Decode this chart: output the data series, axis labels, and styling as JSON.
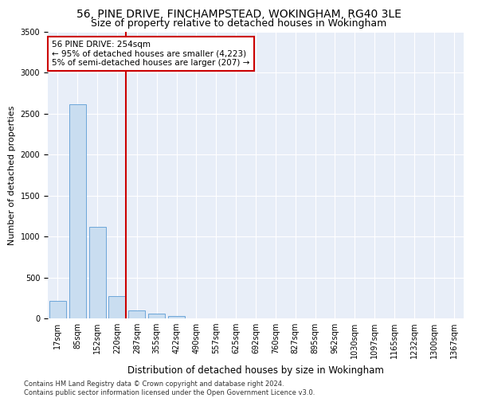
{
  "title1": "56, PINE DRIVE, FINCHAMPSTEAD, WOKINGHAM, RG40 3LE",
  "title2": "Size of property relative to detached houses in Wokingham",
  "xlabel": "Distribution of detached houses by size in Wokingham",
  "ylabel": "Number of detached properties",
  "categories": [
    "17sqm",
    "85sqm",
    "152sqm",
    "220sqm",
    "287sqm",
    "355sqm",
    "422sqm",
    "490sqm",
    "557sqm",
    "625sqm",
    "692sqm",
    "760sqm",
    "827sqm",
    "895sqm",
    "962sqm",
    "1030sqm",
    "1097sqm",
    "1165sqm",
    "1232sqm",
    "1300sqm",
    "1367sqm"
  ],
  "values": [
    210,
    2620,
    1120,
    270,
    100,
    55,
    28,
    0,
    0,
    0,
    0,
    0,
    0,
    0,
    0,
    0,
    0,
    0,
    0,
    0,
    0
  ],
  "bar_color": "#c9ddf0",
  "bar_edge_color": "#5b9bd5",
  "vline_color": "#cc0000",
  "vline_pos": 3.45,
  "annotation_text": "56 PINE DRIVE: 254sqm\n← 95% of detached houses are smaller (4,223)\n5% of semi-detached houses are larger (207) →",
  "annotation_box_facecolor": "#ffffff",
  "annotation_box_edgecolor": "#cc0000",
  "ylim": [
    0,
    3500
  ],
  "yticks": [
    0,
    500,
    1000,
    1500,
    2000,
    2500,
    3000,
    3500
  ],
  "bg_color": "#e8eef8",
  "footer": "Contains HM Land Registry data © Crown copyright and database right 2024.\nContains public sector information licensed under the Open Government Licence v3.0.",
  "title1_fontsize": 10,
  "title2_fontsize": 9,
  "xlabel_fontsize": 8.5,
  "ylabel_fontsize": 8,
  "tick_fontsize": 7,
  "annotation_fontsize": 7.5,
  "footer_fontsize": 6
}
